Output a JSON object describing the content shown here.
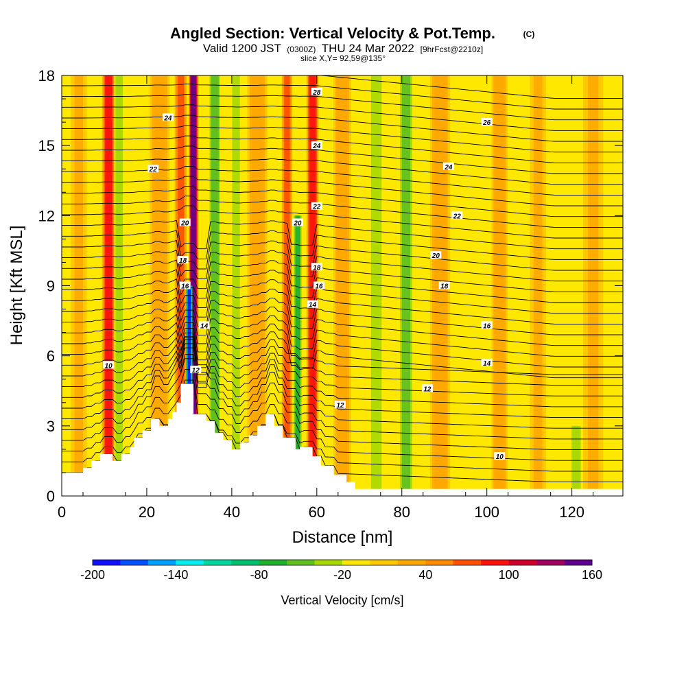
{
  "title": {
    "main": "Angled Section: Vertical Velocity & Pot.Temp.",
    "copyright": "(C)",
    "valid_prefix": "Valid 1200 JST",
    "valid_zulu": "(0300Z)",
    "valid_date": "THU 24 Mar 2022",
    "forecast": "[9hrFcst@2210z]",
    "slice": "slice X,Y= 92,59@135°"
  },
  "chart_data": {
    "type": "heatmap",
    "title": "Angled Section: Vertical Velocity & Pot.Temp.",
    "xlabel": "Distance [nm]",
    "ylabel": "Height [Kft MSL]",
    "xlim": [
      0,
      132
    ],
    "ylim": [
      0,
      18
    ],
    "x_ticks": [
      "0",
      "20",
      "40",
      "60",
      "80",
      "100",
      "120"
    ],
    "y_ticks": [
      "0",
      "3",
      "6",
      "9",
      "12",
      "15",
      "18"
    ],
    "colorbar": {
      "label": "Vertical Velocity [cm/s]",
      "tick_labels": [
        "-200",
        "-140",
        "-80",
        "-20",
        "40",
        "100",
        "160"
      ],
      "levels": [
        -200,
        -180,
        -160,
        -140,
        -120,
        -100,
        -80,
        -60,
        -40,
        -20,
        0,
        20,
        40,
        60,
        80,
        100,
        120,
        140,
        160
      ],
      "colors": [
        "#1010ff",
        "#0050ff",
        "#00a0ff",
        "#00f0f0",
        "#00d8a0",
        "#00c070",
        "#20b030",
        "#60c020",
        "#a8d800",
        "#ffe800",
        "#ffc800",
        "#ffa800",
        "#ff8c00",
        "#ff5000",
        "#ff1010",
        "#d0002c",
        "#a00060",
        "#600090"
      ]
    },
    "vertical_velocity_bands": [
      {
        "x": 4,
        "width": 2.0,
        "w": 28,
        "top": 18
      },
      {
        "x": 11,
        "width": 1.6,
        "w": 95,
        "top": 18
      },
      {
        "x": 13.5,
        "width": 1.2,
        "w": -30,
        "top": 18
      },
      {
        "x": 23,
        "width": 2.5,
        "w": 35,
        "top": 18
      },
      {
        "x": 28,
        "width": 1.5,
        "w": 70,
        "top": 18
      },
      {
        "x": 31,
        "width": 1.2,
        "w": 145,
        "top": 18
      },
      {
        "x": 30,
        "width": 0.8,
        "w": -185,
        "top": 9
      },
      {
        "x": 36,
        "width": 1.3,
        "w": -60,
        "top": 18
      },
      {
        "x": 41,
        "width": 1.8,
        "w": -22,
        "top": 18
      },
      {
        "x": 46,
        "width": 2.5,
        "w": 30,
        "top": 18
      },
      {
        "x": 53,
        "width": 1.3,
        "w": 75,
        "top": 18
      },
      {
        "x": 55.5,
        "width": 1.0,
        "w": -70,
        "top": 12
      },
      {
        "x": 59,
        "width": 1.5,
        "w": 95,
        "top": 18
      },
      {
        "x": 66,
        "width": 2.2,
        "w": 35,
        "top": 18
      },
      {
        "x": 74,
        "width": 2.5,
        "w": -25,
        "top": 18
      },
      {
        "x": 81,
        "width": 2.0,
        "w": -45,
        "top": 18
      },
      {
        "x": 89,
        "width": 2.5,
        "w": 30,
        "top": 18
      },
      {
        "x": 103,
        "width": 2.0,
        "w": 35,
        "top": 18
      },
      {
        "x": 112,
        "width": 2.0,
        "w": 28,
        "top": 18
      },
      {
        "x": 121,
        "width": 1.5,
        "w": -40,
        "top": 3
      },
      {
        "x": 125,
        "width": 2.5,
        "w": 25,
        "top": 18
      }
    ],
    "terrain_height_kft": [
      [
        0,
        1.0
      ],
      [
        5,
        1.0
      ],
      [
        5,
        1.2
      ],
      [
        7,
        1.2
      ],
      [
        7,
        1.5
      ],
      [
        9,
        1.5
      ],
      [
        9,
        1.8
      ],
      [
        12,
        1.8
      ],
      [
        12,
        1.5
      ],
      [
        14,
        1.5
      ],
      [
        14,
        1.8
      ],
      [
        16,
        1.8
      ],
      [
        16,
        2.1
      ],
      [
        17,
        2.1
      ],
      [
        17,
        2.5
      ],
      [
        19,
        2.5
      ],
      [
        19,
        2.8
      ],
      [
        21,
        2.8
      ],
      [
        21,
        3.3
      ],
      [
        23,
        3.3
      ],
      [
        23,
        3.0
      ],
      [
        25,
        3.0
      ],
      [
        25,
        3.3
      ],
      [
        26,
        3.3
      ],
      [
        26,
        3.6
      ],
      [
        27,
        3.6
      ],
      [
        27,
        4.0
      ],
      [
        28,
        4.0
      ],
      [
        28,
        4.8
      ],
      [
        31,
        4.8
      ],
      [
        31,
        3.5
      ],
      [
        34,
        3.5
      ],
      [
        34,
        3.2
      ],
      [
        36,
        3.2
      ],
      [
        36,
        2.7
      ],
      [
        38,
        2.7
      ],
      [
        38,
        2.4
      ],
      [
        40,
        2.4
      ],
      [
        40,
        2.0
      ],
      [
        42,
        2.0
      ],
      [
        42,
        2.3
      ],
      [
        44,
        2.3
      ],
      [
        44,
        2.6
      ],
      [
        46,
        2.6
      ],
      [
        46,
        3.0
      ],
      [
        48,
        3.0
      ],
      [
        48,
        3.5
      ],
      [
        50,
        3.5
      ],
      [
        50,
        3.0
      ],
      [
        52,
        3.0
      ],
      [
        52,
        2.5
      ],
      [
        55,
        2.5
      ],
      [
        55,
        2.0
      ],
      [
        56,
        2.0
      ],
      [
        56,
        2.1
      ],
      [
        59,
        2.1
      ],
      [
        59,
        1.7
      ],
      [
        61,
        1.7
      ],
      [
        61,
        1.3
      ],
      [
        64,
        1.3
      ],
      [
        64,
        0.9
      ],
      [
        67,
        0.9
      ],
      [
        67,
        0.6
      ],
      [
        69,
        0.6
      ],
      [
        69,
        0.3
      ],
      [
        72,
        0.3
      ],
      [
        72,
        0.3
      ],
      [
        132,
        0.3
      ]
    ],
    "theta_contours": [
      {
        "label": "10",
        "base": 2.7,
        "top": 18,
        "label_pos": [
          11,
          5.6
        ]
      },
      {
        "label": "12",
        "base": 4.5,
        "top": 18,
        "label_pos": [
          33,
          5.3
        ]
      },
      {
        "label": "14",
        "base": 6.0,
        "top": 18,
        "label_pos": [
          100,
          5.7
        ]
      },
      {
        "label": "16",
        "base": 7.4,
        "top": 18,
        "label_pos": [
          100,
          7.3
        ]
      },
      {
        "label": "18",
        "base": 9.2,
        "top": 18,
        "label_pos": [
          90,
          9.0
        ]
      },
      {
        "label": "20",
        "base": 10.3,
        "top": 18,
        "label_pos": [
          88,
          10.3
        ]
      },
      {
        "label": "22",
        "base": 12.0,
        "top": 18,
        "label_pos": [
          93,
          12.0
        ]
      },
      {
        "label": "24",
        "base": 14.0,
        "top": 18,
        "label_pos": [
          91,
          14.1
        ]
      },
      {
        "label": "26",
        "base": 16.0,
        "top": 18,
        "label_pos": [
          100,
          16.0
        ]
      },
      {
        "label": "28",
        "base": 17.6,
        "top": 18,
        "label_pos": [
          60,
          17.3
        ]
      }
    ],
    "contour_labels": [
      {
        "text": "10",
        "x": 11,
        "y": 5.6
      },
      {
        "text": "10",
        "x": 103,
        "y": 1.7
      },
      {
        "text": "12",
        "x": 31.5,
        "y": 5.4
      },
      {
        "text": "12",
        "x": 65.5,
        "y": 3.9
      },
      {
        "text": "12",
        "x": 86,
        "y": 4.6
      },
      {
        "text": "14",
        "x": 33.5,
        "y": 7.3
      },
      {
        "text": "14",
        "x": 59,
        "y": 8.2
      },
      {
        "text": "14",
        "x": 100,
        "y": 5.7
      },
      {
        "text": "16",
        "x": 29,
        "y": 9.0
      },
      {
        "text": "16",
        "x": 60.5,
        "y": 9.0
      },
      {
        "text": "16",
        "x": 100,
        "y": 7.3
      },
      {
        "text": "18",
        "x": 28.5,
        "y": 10.1
      },
      {
        "text": "18",
        "x": 60,
        "y": 9.8
      },
      {
        "text": "18",
        "x": 90,
        "y": 9.0
      },
      {
        "text": "20",
        "x": 29,
        "y": 11.7
      },
      {
        "text": "20",
        "x": 55.5,
        "y": 11.7
      },
      {
        "text": "20",
        "x": 88,
        "y": 10.3
      },
      {
        "text": "22",
        "x": 21.5,
        "y": 14.0
      },
      {
        "text": "22",
        "x": 60,
        "y": 12.4
      },
      {
        "text": "22",
        "x": 93,
        "y": 12.0
      },
      {
        "text": "24",
        "x": 25,
        "y": 16.2
      },
      {
        "text": "24",
        "x": 60,
        "y": 15.0
      },
      {
        "text": "24",
        "x": 91,
        "y": 14.1
      },
      {
        "text": "26",
        "x": 100,
        "y": 16.0
      },
      {
        "text": "28",
        "x": 60,
        "y": 17.3
      }
    ],
    "grid": false
  }
}
